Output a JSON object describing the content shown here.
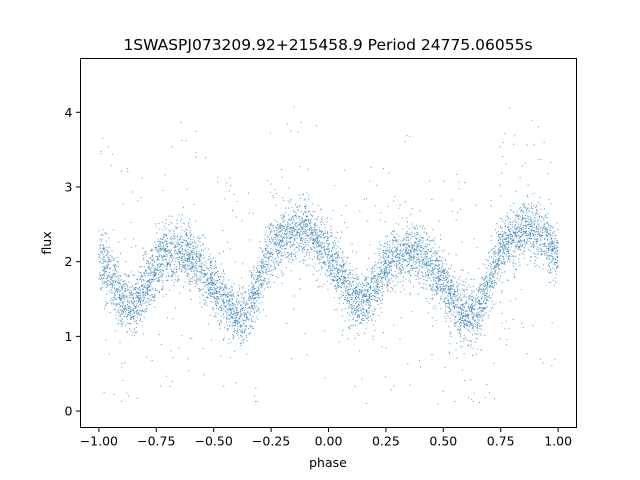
{
  "chart_data": {
    "type": "scatter",
    "title": "1SWASPJ073209.92+215458.9 Period 24775.06055s",
    "xlabel": "phase",
    "ylabel": "flux",
    "xlim": [
      -1.08,
      1.08
    ],
    "ylim": [
      -0.22,
      4.72
    ],
    "x_ticks": [
      {
        "value": -1.0,
        "label": "−1.00"
      },
      {
        "value": -0.75,
        "label": "−0.75"
      },
      {
        "value": -0.5,
        "label": "−0.50"
      },
      {
        "value": -0.25,
        "label": "−0.25"
      },
      {
        "value": 0.0,
        "label": "0.00"
      },
      {
        "value": 0.25,
        "label": "0.25"
      },
      {
        "value": 0.5,
        "label": "0.50"
      },
      {
        "value": 0.75,
        "label": "0.75"
      },
      {
        "value": 1.0,
        "label": "1.00"
      }
    ],
    "y_ticks": [
      {
        "value": 0,
        "label": "0"
      },
      {
        "value": 1,
        "label": "1"
      },
      {
        "value": 2,
        "label": "2"
      },
      {
        "value": 3,
        "label": "3"
      },
      {
        "value": 4,
        "label": "4"
      }
    ],
    "grid": false,
    "legend": "none",
    "point_color": "#1f77b4",
    "series": [
      {
        "phase": [
          -1.0,
          -0.95,
          -0.9,
          -0.85,
          -0.8,
          -0.75,
          -0.7,
          -0.65,
          -0.6,
          -0.55,
          -0.5,
          -0.45,
          -0.4,
          -0.35,
          -0.3,
          -0.25,
          -0.2,
          -0.15,
          -0.1,
          -0.05,
          0.0,
          0.05,
          0.1,
          0.15,
          0.2,
          0.25,
          0.3,
          0.35,
          0.4,
          0.45,
          0.5,
          0.55,
          0.6,
          0.65,
          0.7,
          0.75,
          0.8,
          0.85,
          0.9,
          0.95,
          1.0
        ],
        "flux": [
          2.05,
          1.8,
          1.55,
          1.4,
          1.65,
          1.95,
          2.12,
          2.15,
          2.1,
          1.9,
          1.7,
          1.45,
          1.25,
          1.3,
          1.75,
          2.15,
          2.35,
          2.45,
          2.42,
          2.3,
          2.05,
          1.8,
          1.55,
          1.4,
          1.65,
          1.95,
          2.12,
          2.15,
          2.1,
          1.9,
          1.7,
          1.45,
          1.25,
          1.3,
          1.75,
          2.15,
          2.35,
          2.45,
          2.42,
          2.3,
          2.05
        ]
      }
    ]
  }
}
